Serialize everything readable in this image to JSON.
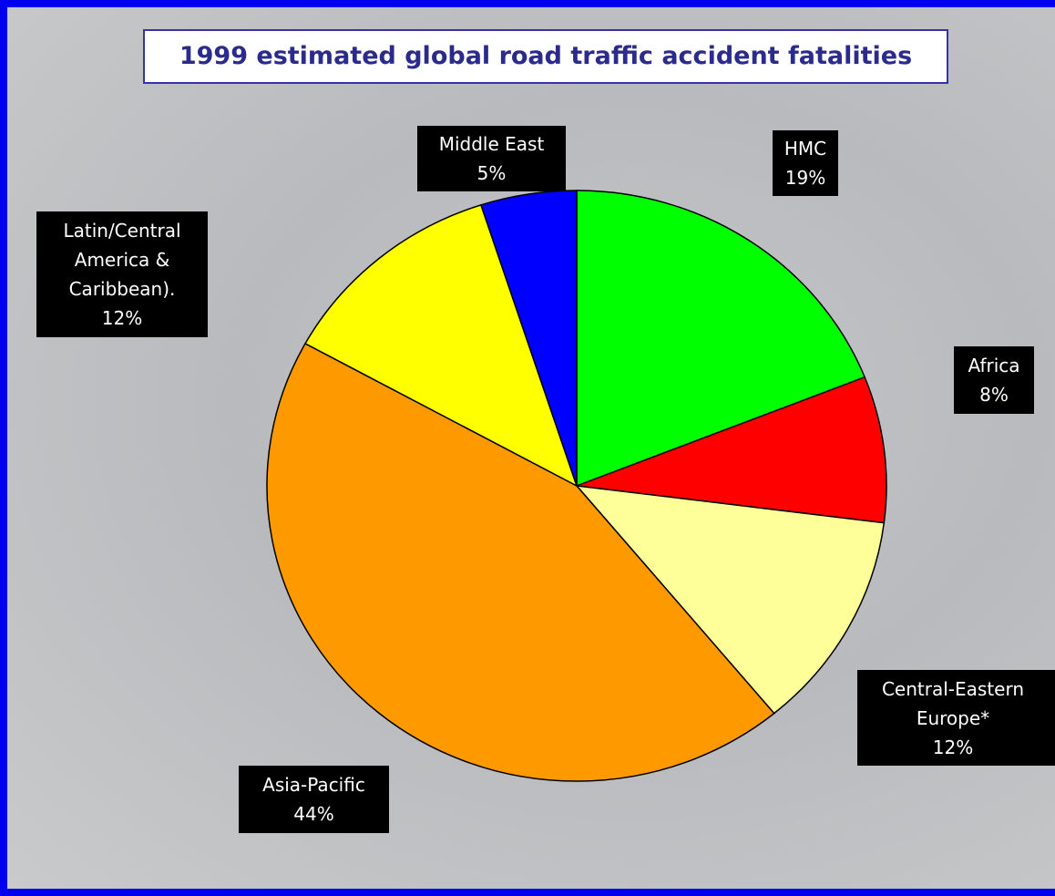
{
  "chart_data": {
    "type": "pie",
    "title": "1999 estimated global road traffic accident fatalities",
    "categories": [
      "HMC",
      "Africa",
      "Central-Eastern Europe*",
      "Asia-Pacific",
      "Latin/Central America & Caribbean).",
      "Middle East"
    ],
    "values": [
      19,
      8,
      12,
      44,
      12,
      5
    ],
    "value_labels": [
      "19%",
      "8%",
      "12%",
      "44%",
      "12%",
      "5%"
    ],
    "colors": [
      "#00ff00",
      "#ff0000",
      "#ffff99",
      "#ff9900",
      "#ffff00",
      "#0000ff"
    ]
  }
}
